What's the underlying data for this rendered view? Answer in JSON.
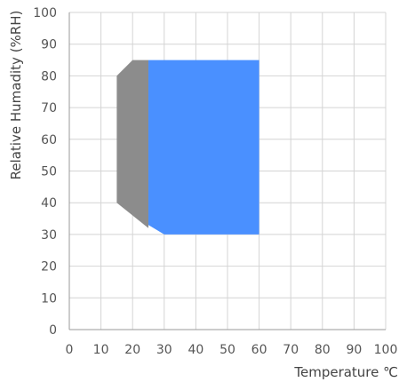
{
  "chart_data": {
    "type": "area",
    "title": "",
    "xlabel": "Temperature ℃",
    "ylabel": "Relative Humadity (%RH)",
    "xlim": [
      0,
      100
    ],
    "ylim": [
      0,
      100
    ],
    "x_ticks": [
      0,
      10,
      20,
      30,
      40,
      50,
      60,
      70,
      80,
      90,
      100
    ],
    "y_ticks": [
      0,
      10,
      20,
      30,
      40,
      50,
      60,
      70,
      80,
      90,
      100
    ],
    "grid": true,
    "series": [
      {
        "color": "#8c8c8c",
        "polygon": [
          [
            15,
            40
          ],
          [
            15,
            80
          ],
          [
            20,
            85
          ],
          [
            25,
            85
          ],
          [
            25,
            32
          ]
        ]
      },
      {
        "color": "#4a90ff",
        "polygon": [
          [
            25,
            85
          ],
          [
            60,
            85
          ],
          [
            60,
            30
          ],
          [
            30,
            30
          ],
          [
            25,
            33
          ]
        ]
      }
    ]
  }
}
